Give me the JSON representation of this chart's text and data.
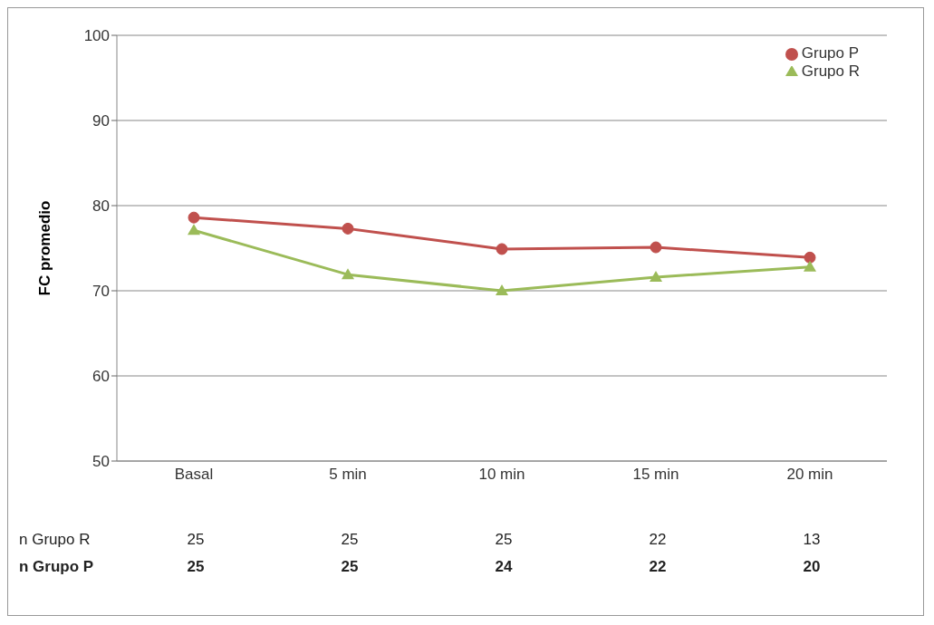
{
  "chart_data": {
    "type": "line",
    "ylabel": "FC promedio",
    "categories": [
      "Basal",
      "5 min",
      "10 min",
      "15 min",
      "20 min"
    ],
    "series": [
      {
        "name": "Grupo P",
        "color": "#c0504d",
        "marker": "circle",
        "values": [
          78.6,
          77.3,
          74.9,
          75.1,
          73.9
        ]
      },
      {
        "name": "Grupo R",
        "color": "#9bbb59",
        "marker": "triangle",
        "values": [
          77.1,
          71.9,
          70.0,
          71.6,
          72.8
        ]
      }
    ],
    "ylim": [
      50,
      100
    ],
    "yticks": [
      50,
      60,
      70,
      80,
      90,
      100
    ],
    "grid": "y",
    "legend": "top right",
    "annotations": [
      "n Grupo R",
      "25",
      "25",
      "25",
      "22",
      "13",
      "n Grupo P",
      "25",
      "25",
      "24",
      "22",
      "20"
    ]
  }
}
